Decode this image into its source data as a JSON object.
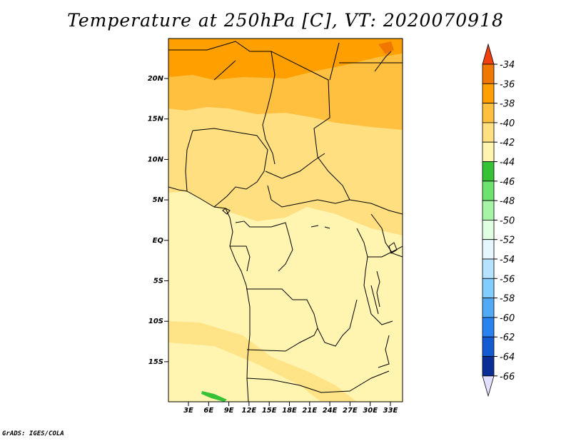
{
  "title": "Temperature at 250hPa [C], VT: 2020070918",
  "credit": "GrADS: IGES/COLA",
  "map": {
    "lat_labels": [
      "20N",
      "15N",
      "10N",
      "5N",
      "EQ",
      "5S",
      "10S",
      "15S"
    ],
    "lon_labels": [
      "3E",
      "6E",
      "9E",
      "12E",
      "15E",
      "18E",
      "21E",
      "24E",
      "27E",
      "30E",
      "33E"
    ]
  },
  "colorbar": {
    "labels": [
      "-34",
      "-36",
      "-38",
      "-40",
      "-42",
      "-44",
      "-46",
      "-48",
      "-50",
      "-52",
      "-54",
      "-56",
      "-58",
      "-60",
      "-62",
      "-64",
      "-66"
    ],
    "colors": [
      "#f07800",
      "#ffa000",
      "#ffc040",
      "#ffdf7f",
      "#fff5b0",
      "#35c235",
      "#6ee26e",
      "#a6f4a6",
      "#e1ffe1",
      "#e6f6ff",
      "#b4e2ff",
      "#82cdff",
      "#50aaf5",
      "#2882f0",
      "#145ad2",
      "#0a2d96",
      "#000a64"
    ],
    "top_arrow_color": "#f04010",
    "bottom_arrow_color": "#e1e1ff"
  }
}
